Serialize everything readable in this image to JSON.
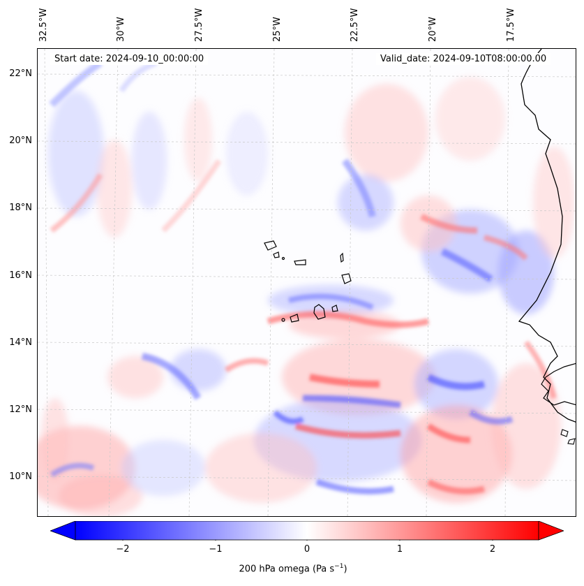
{
  "header": {
    "start_date": "Start date: 2024-09-10_00:00:00",
    "valid_date": "Valid_date: 2024-09-10T08:00:00.00"
  },
  "axes": {
    "lon_labels": [
      "32.5°W",
      "30°W",
      "27.5°W",
      "25°W",
      "22.5°W",
      "20°W",
      "17.5°W"
    ],
    "lat_labels": [
      "22°N",
      "20°N",
      "18°N",
      "16°N",
      "14°N",
      "12°N",
      "10°N"
    ]
  },
  "colorbar": {
    "ticks": [
      "−2",
      "−1",
      "0",
      "1",
      "2"
    ],
    "label_main": "200 hPa omega (Pa s",
    "label_sup": "−1",
    "label_end": ")",
    "colors": {
      "negative": "#0000ff",
      "neutral": "#ffffff",
      "positive": "#ff0000"
    }
  },
  "colors": {
    "coast": "#000000",
    "grid": "#c8c8c8"
  }
}
